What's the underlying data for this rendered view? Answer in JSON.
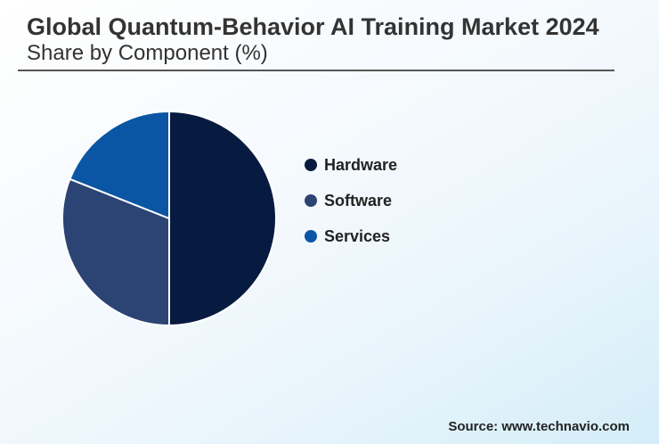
{
  "header": {
    "title": "Global Quantum-Behavior AI Training Market 2024",
    "subtitle": "Share by Component (%)"
  },
  "source": "Source: www.technavio.com",
  "colors": {
    "Hardware": "#071b41",
    "Software": "#2b4474",
    "Services": "#0b56a4"
  },
  "chart_data": {
    "type": "pie",
    "title": "Global Quantum-Behavior AI Training Market 2024",
    "subtitle": "Share by Component (%)",
    "categories": [
      "Hardware",
      "Software",
      "Services"
    ],
    "values": [
      50,
      31,
      19
    ],
    "legend_position": "right",
    "start_angle": "top, clockwise"
  }
}
